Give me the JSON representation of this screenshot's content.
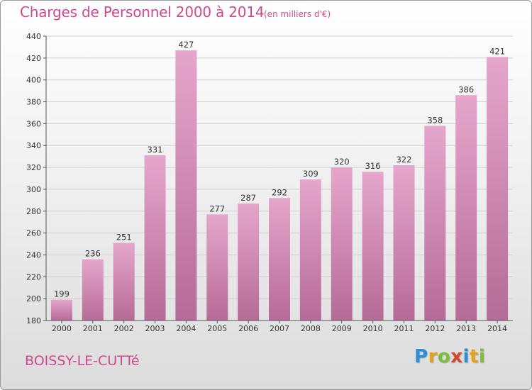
{
  "chart_data": {
    "type": "bar",
    "title": "Charges de Personnel 2000 à 2014",
    "subtitle": "(en milliers d'€)",
    "categories": [
      "2000",
      "2001",
      "2002",
      "2003",
      "2004",
      "2005",
      "2006",
      "2007",
      "2008",
      "2009",
      "2010",
      "2011",
      "2012",
      "2013",
      "2014"
    ],
    "values": [
      199,
      236,
      251,
      331,
      427,
      277,
      287,
      292,
      309,
      320,
      316,
      322,
      358,
      386,
      421
    ],
    "ylim": [
      180,
      440
    ],
    "yticks": [
      180,
      200,
      220,
      240,
      260,
      280,
      300,
      320,
      340,
      360,
      380,
      400,
      420,
      440
    ],
    "grid": true,
    "colors": {
      "bar_light": "#e6a6cc",
      "bar_dark": "#b56b97",
      "text_accent": "#d04a8a"
    }
  },
  "footer": {
    "commune": "BOISSY-LE-CUTTé",
    "logo_letters": [
      "P",
      "r",
      "o",
      "x",
      "i",
      "t",
      "i"
    ],
    "logo_colors": [
      "#2a8fd6",
      "#e6a21a",
      "#7bbf3a",
      "#d8432e",
      "#2a8fd6",
      "#e6a21a",
      "#7bbf3a"
    ]
  }
}
